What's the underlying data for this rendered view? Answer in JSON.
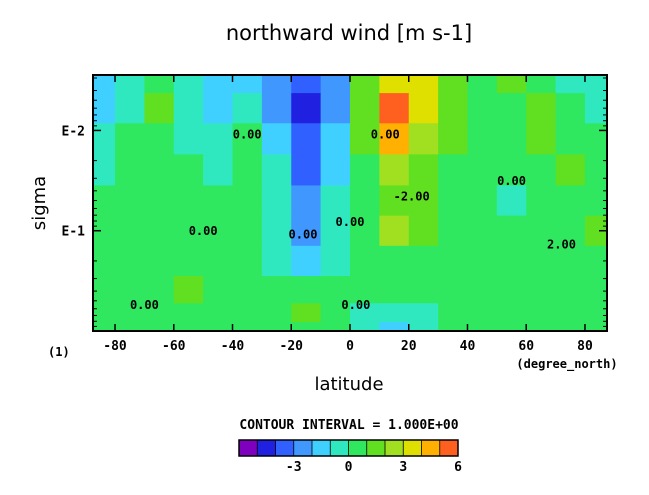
{
  "chart_data": {
    "type": "heatmap",
    "title": "northward wind [m s-1]",
    "xlabel": "latitude",
    "ylabel": "sigma",
    "x_units": "(degree_north)",
    "x_ticks": [
      -80,
      -60,
      -40,
      -20,
      0,
      20,
      40,
      60,
      80
    ],
    "x_tick_labels": [
      "-80",
      "-60",
      "-40",
      "-20",
      "0",
      "20",
      "40",
      "60",
      "80"
    ],
    "xlim": [
      -87.5,
      87.5
    ],
    "y_scale": "log",
    "y_ticks": [
      0.01,
      0.1
    ],
    "y_tick_labels": [
      "E-2",
      "E-1"
    ],
    "ylim": [
      1.0,
      0.0028
    ],
    "y_reversed": true,
    "page_label": "(1)",
    "contour_interval_text": "CONTOUR INTERVAL = 1.000E+00",
    "contour_labels": [
      "0.00",
      "0.00",
      "0.00",
      "0.00",
      "0.00",
      "0.00",
      "2.00",
      "-2.00",
      "0.00",
      "0.00"
    ],
    "colorbar": {
      "levels": [
        -6,
        -5,
        -4,
        -3,
        -2,
        -1,
        0,
        1,
        2,
        3,
        4,
        5,
        6
      ],
      "tick_values": [
        -3,
        0,
        3,
        6
      ],
      "tick_labels": [
        "-3",
        "0",
        "3",
        "6"
      ],
      "colors": [
        "#8000c0",
        "#2020e0",
        "#3060ff",
        "#4098ff",
        "#40d0ff",
        "#30e8c0",
        "#30e860",
        "#60e020",
        "#a0e020",
        "#e0e000",
        "#ffb000",
        "#ff6020"
      ]
    },
    "x": [
      -85,
      -75,
      -65,
      -55,
      -45,
      -35,
      -25,
      -15,
      -5,
      5,
      15,
      25,
      35,
      45,
      55,
      65,
      75,
      85
    ],
    "y": [
      0.003,
      0.006,
      0.012,
      0.025,
      0.05,
      0.1,
      0.2,
      0.4,
      0.7,
      0.95
    ],
    "z": [
      [
        -1.6,
        -0.4,
        0.6,
        -0.4,
        -1.2,
        -1.4,
        -2.6,
        -4.0,
        -2.8,
        1.2,
        3.4,
        3.0,
        1.2,
        0.2,
        1.0,
        0.4,
        -0.4,
        -1.0
      ],
      [
        -1.2,
        -0.2,
        1.2,
        -0.6,
        -1.2,
        -0.4,
        -2.4,
        -5.0,
        -2.2,
        1.6,
        5.0,
        3.2,
        1.4,
        0.4,
        0.6,
        1.8,
        0.2,
        -0.6
      ],
      [
        -0.6,
        0.2,
        0.4,
        -0.6,
        -0.4,
        0.4,
        -1.6,
        -4.0,
        -1.8,
        1.0,
        4.2,
        2.6,
        1.0,
        0.3,
        0.6,
        1.0,
        0.2,
        0.0
      ],
      [
        -0.2,
        0.4,
        0.4,
        0.2,
        -0.2,
        0.2,
        -0.6,
        -3.2,
        -1.2,
        0.2,
        2.6,
        1.8,
        0.6,
        0.2,
        0.4,
        0.6,
        1.2,
        0.4
      ],
      [
        0.2,
        0.4,
        0.6,
        0.6,
        0.4,
        0.4,
        -0.4,
        -2.6,
        -0.8,
        0.4,
        1.8,
        1.2,
        0.4,
        0.0,
        -0.4,
        0.4,
        0.8,
        0.4
      ],
      [
        0.4,
        0.6,
        0.8,
        0.8,
        0.4,
        0.6,
        -0.8,
        -2.4,
        -0.4,
        0.8,
        2.0,
        1.0,
        0.4,
        0.2,
        0.2,
        0.4,
        0.8,
        1.2
      ],
      [
        0.6,
        0.8,
        0.8,
        0.8,
        0.8,
        0.4,
        -0.2,
        -1.2,
        -0.2,
        0.6,
        0.8,
        0.8,
        0.4,
        0.2,
        0.6,
        0.6,
        0.4,
        0.6
      ],
      [
        0.4,
        0.6,
        0.4,
        1.2,
        0.6,
        0.4,
        0.4,
        0.6,
        0.2,
        0.2,
        0.4,
        0.8,
        0.6,
        0.4,
        0.6,
        0.4,
        0.2,
        0.4
      ],
      [
        0.2,
        0.4,
        0.6,
        0.4,
        0.2,
        0.0,
        0.2,
        1.2,
        0.4,
        -0.2,
        -0.8,
        -0.4,
        0.0,
        0.2,
        0.4,
        0.4,
        0.2,
        0.2
      ],
      [
        0.4,
        0.4,
        0.6,
        0.4,
        0.4,
        0.2,
        0.4,
        0.8,
        0.6,
        -0.6,
        -1.2,
        -0.6,
        0.2,
        0.4,
        0.4,
        0.4,
        0.2,
        0.4
      ]
    ]
  }
}
